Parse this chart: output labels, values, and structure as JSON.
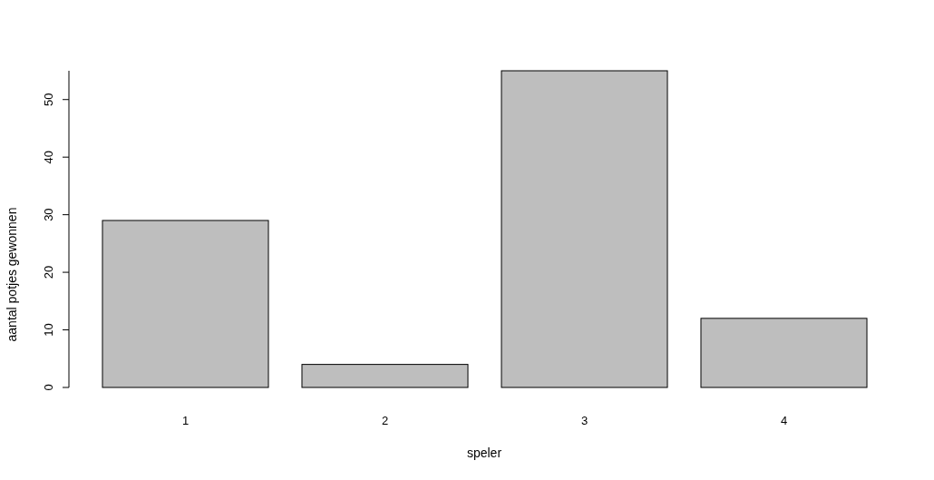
{
  "chart_data": {
    "type": "bar",
    "xlabel": "speler",
    "ylabel": "aantal potjes gewonnen",
    "categories": [
      "1",
      "2",
      "3",
      "4"
    ],
    "values": [
      29,
      4,
      55,
      12
    ],
    "color": "#bebebe",
    "ylim": [
      0,
      55
    ],
    "yticks": [
      0,
      10,
      20,
      30,
      40,
      50
    ],
    "grid": false
  }
}
